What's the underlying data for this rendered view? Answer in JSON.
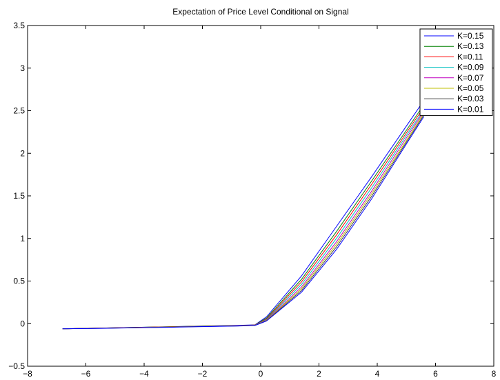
{
  "chart_data": {
    "type": "line",
    "title": "Expectation of Price Level Conditional on Signal",
    "xlabel": "",
    "ylabel": "",
    "xlim": [
      -8,
      8
    ],
    "ylim": [
      -0.5,
      3.5
    ],
    "xticks": [
      -8,
      -6,
      -4,
      -2,
      0,
      2,
      4,
      6,
      8
    ],
    "xtick_labels": [
      "−8",
      "−6",
      "−4",
      "−2",
      "0",
      "2",
      "4",
      "6",
      "8"
    ],
    "yticks": [
      -0.5,
      0,
      0.5,
      1,
      1.5,
      2,
      2.5,
      3,
      3.5
    ],
    "ytick_labels": [
      "−0.5",
      "0",
      "0.5",
      "1",
      "1.5",
      "2",
      "2.5",
      "3",
      "3.5"
    ],
    "grid": false,
    "legend_position": "top-right",
    "series": [
      {
        "name": "K=0.15",
        "color": "#0000ff",
        "x": [
          -6.8,
          -5.6,
          -4.4,
          -3.2,
          -2.0,
          -0.8,
          -0.2,
          0.2,
          1.4,
          2.6,
          3.8,
          5.0,
          5.6
        ],
        "y": [
          -0.06,
          -0.052,
          -0.044,
          -0.036,
          -0.028,
          -0.021,
          -0.014,
          0.08,
          0.56,
          1.14,
          1.72,
          2.32,
          2.62
        ]
      },
      {
        "name": "K=0.13",
        "color": "#008000",
        "x": [
          -6.8,
          -5.6,
          -4.4,
          -3.2,
          -2.0,
          -0.8,
          -0.2,
          0.2,
          1.4,
          2.6,
          3.8,
          5.0,
          5.6
        ],
        "y": [
          -0.06,
          -0.053,
          -0.045,
          -0.037,
          -0.029,
          -0.022,
          -0.016,
          0.065,
          0.52,
          1.08,
          1.67,
          2.27,
          2.57
        ]
      },
      {
        "name": "K=0.11",
        "color": "#ff0000",
        "x": [
          -6.8,
          -5.6,
          -4.4,
          -3.2,
          -2.0,
          -0.8,
          -0.2,
          0.2,
          1.4,
          2.6,
          3.8,
          5.0,
          5.6
        ],
        "y": [
          -0.06,
          -0.053,
          -0.046,
          -0.038,
          -0.03,
          -0.023,
          -0.017,
          0.055,
          0.49,
          1.04,
          1.63,
          2.24,
          2.54
        ]
      },
      {
        "name": "K=0.09",
        "color": "#00bfbf",
        "x": [
          -6.8,
          -5.6,
          -4.4,
          -3.2,
          -2.0,
          -0.8,
          -0.2,
          0.2,
          1.4,
          2.6,
          3.8,
          5.0,
          5.6
        ],
        "y": [
          -0.06,
          -0.054,
          -0.047,
          -0.039,
          -0.031,
          -0.024,
          -0.018,
          0.048,
          0.46,
          1.0,
          1.59,
          2.21,
          2.51
        ]
      },
      {
        "name": "K=0.07",
        "color": "#bf00bf",
        "x": [
          -6.8,
          -5.6,
          -4.4,
          -3.2,
          -2.0,
          -0.8,
          -0.2,
          0.2,
          1.4,
          2.6,
          3.8,
          5.0,
          5.6
        ],
        "y": [
          -0.06,
          -0.054,
          -0.047,
          -0.04,
          -0.032,
          -0.025,
          -0.019,
          0.042,
          0.43,
          0.96,
          1.55,
          2.18,
          2.49
        ]
      },
      {
        "name": "K=0.05",
        "color": "#bfbf00",
        "x": [
          -6.8,
          -5.6,
          -4.4,
          -3.2,
          -2.0,
          -0.8,
          -0.2,
          0.2,
          1.4,
          2.6,
          3.8,
          5.0,
          5.6
        ],
        "y": [
          -0.06,
          -0.055,
          -0.048,
          -0.041,
          -0.033,
          -0.026,
          -0.02,
          0.037,
          0.41,
          0.93,
          1.52,
          2.15,
          2.47
        ]
      },
      {
        "name": "K=0.03",
        "color": "#404040",
        "x": [
          -6.8,
          -5.6,
          -4.4,
          -3.2,
          -2.0,
          -0.8,
          -0.2,
          0.2,
          1.4,
          2.6,
          3.8,
          5.0,
          5.6
        ],
        "y": [
          -0.06,
          -0.055,
          -0.049,
          -0.042,
          -0.034,
          -0.027,
          -0.021,
          0.033,
          0.39,
          0.9,
          1.49,
          2.13,
          2.45
        ]
      },
      {
        "name": "K=0.01",
        "color": "#0000ff",
        "x": [
          -6.8,
          -5.6,
          -4.4,
          -3.2,
          -2.0,
          -0.8,
          -0.2,
          0.2,
          1.4,
          2.6,
          3.8,
          5.0,
          5.6
        ],
        "y": [
          -0.06,
          -0.056,
          -0.05,
          -0.043,
          -0.035,
          -0.028,
          -0.022,
          0.03,
          0.37,
          0.87,
          1.46,
          2.11,
          2.43
        ]
      }
    ]
  }
}
